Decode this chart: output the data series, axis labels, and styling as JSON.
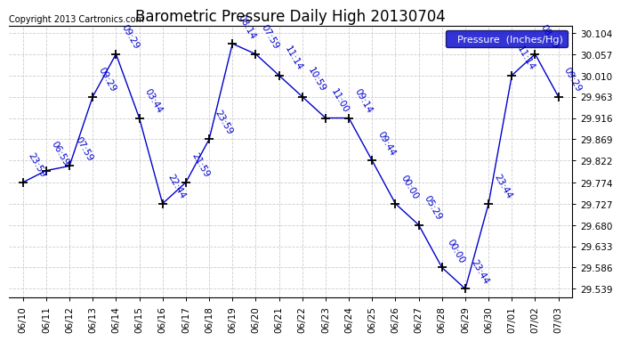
{
  "title": "Barometric Pressure Daily High 20130704",
  "copyright": "Copyright 2013 Cartronics.com",
  "legend_label": "Pressure  (Inches/Hg)",
  "background_color": "#ffffff",
  "plot_bg_color": "#ffffff",
  "grid_color": "#cccccc",
  "line_color": "#0000cc",
  "marker_color": "#000000",
  "title_color": "#000000",
  "legend_bg": "#0000cc",
  "legend_text_color": "#ffffff",
  "ylim_min": 29.52,
  "ylim_max": 30.12,
  "yticks": [
    29.539,
    29.586,
    29.633,
    29.68,
    29.727,
    29.774,
    29.822,
    29.869,
    29.916,
    29.963,
    30.01,
    30.057,
    30.104
  ],
  "dates": [
    "06/10",
    "06/11",
    "06/12",
    "06/13",
    "06/14",
    "06/15",
    "06/16",
    "06/17",
    "06/18",
    "06/19",
    "06/20",
    "06/21",
    "06/22",
    "06/23",
    "06/24",
    "06/25",
    "06/26",
    "06/27",
    "06/28",
    "06/29",
    "06/30",
    "07/01",
    "07/02",
    "07/03"
  ],
  "values": [
    29.774,
    29.8,
    29.81,
    29.963,
    30.057,
    29.916,
    29.727,
    29.774,
    29.869,
    30.08,
    30.057,
    30.01,
    29.963,
    29.916,
    29.916,
    29.822,
    29.727,
    29.68,
    29.586,
    29.539,
    29.727,
    30.01,
    30.057,
    29.963
  ],
  "annotations": [
    "23:59",
    "06:59",
    "07:59",
    "09:29",
    "09:29",
    "03:44",
    "22:44",
    "21:59",
    "23:59",
    "08:14",
    "07:59",
    "11:14",
    "10:59",
    "11:00",
    "09:14",
    "09:44",
    "00:00",
    "05:29",
    "00:00",
    "23:44",
    "23:44",
    "11:14",
    "08:29",
    "09:29"
  ],
  "annotation_rotation": -60,
  "annotation_fontsize": 7.5,
  "annotation_color": "#0000cc",
  "title_fontsize": 12,
  "copyright_fontsize": 7,
  "tick_fontsize": 7.5,
  "xtick_fontsize": 7.5
}
